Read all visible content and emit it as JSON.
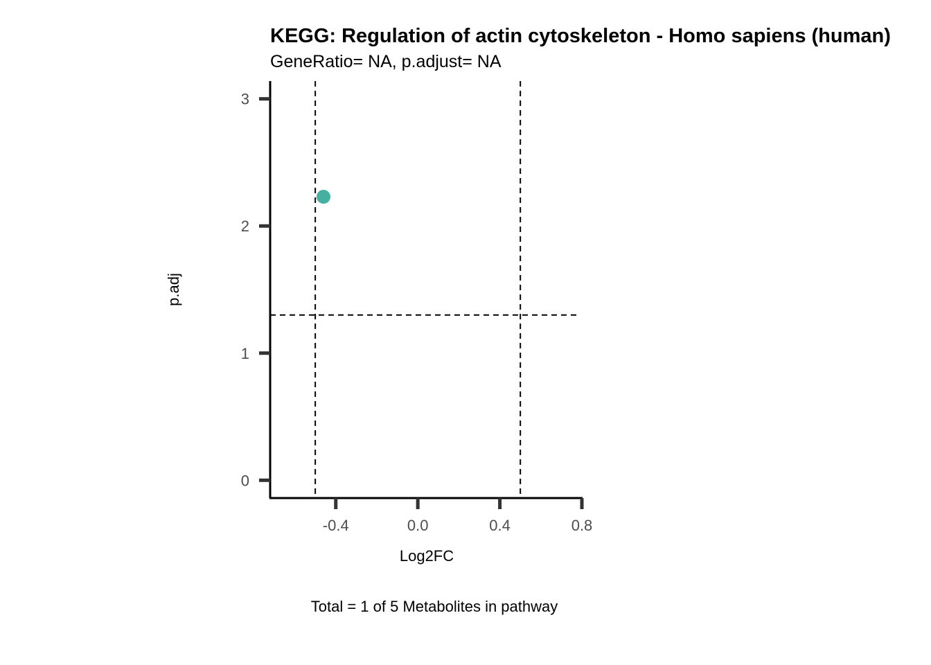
{
  "chart_data": {
    "type": "scatter",
    "title": "KEGG: Regulation of actin cytoskeleton - Homo sapiens (human)",
    "subtitle": "GeneRatio= NA, p.adjust= NA",
    "xlabel": "Log2FC",
    "ylabel": "p.adj",
    "caption": "Total = 1 of 5 Metabolites in pathway",
    "xlim": [
      -0.72,
      0.8
    ],
    "ylim": [
      -0.14,
      3.14
    ],
    "x_ticks": [
      -0.4,
      0.0,
      0.4,
      0.8
    ],
    "x_tick_labels": [
      "-0.4",
      "0.0",
      "0.4",
      "0.8"
    ],
    "y_ticks": [
      0,
      1,
      2,
      3
    ],
    "y_tick_labels": [
      "0",
      "1",
      "2",
      "3"
    ],
    "vlines": [
      -0.5,
      0.5
    ],
    "hlines": [
      1.3
    ],
    "grid": false,
    "points": [
      {
        "x": -0.46,
        "y": 2.23,
        "color": "#45AFA0"
      }
    ]
  }
}
